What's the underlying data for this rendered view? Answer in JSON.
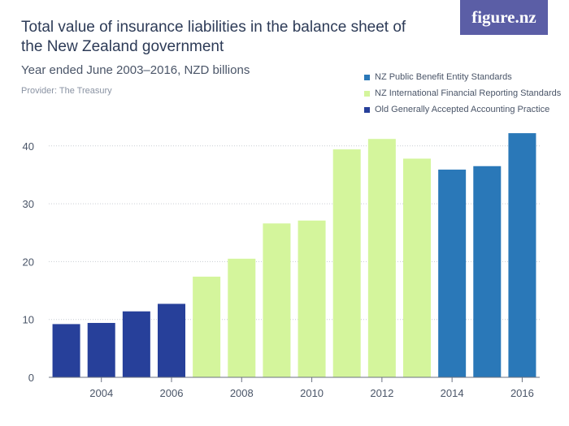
{
  "header": {
    "title": "Total value of insurance liabilities in the balance sheet of the New Zealand government",
    "subtitle": "Year ended June 2003–2016, NZD billions",
    "provider": "Provider: The Treasury",
    "logo_text": "figure.nz"
  },
  "colors": {
    "old_gaap": "#27409a",
    "nz_ifrs": "#d4f59c",
    "nz_pbe": "#2a78b8",
    "logo_bg": "#5b5ea6",
    "axis": "#6b7280",
    "grid": "#c9cdd3"
  },
  "chart_data": {
    "type": "bar",
    "title": "Total value of insurance liabilities in the balance sheet of the New Zealand government",
    "subtitle": "Year ended June 2003–2016, NZD billions",
    "categories": [
      "2003",
      "2004",
      "2005",
      "2006",
      "2007",
      "2008",
      "2009",
      "2010",
      "2011",
      "2012",
      "2013",
      "2014",
      "2015",
      "2016"
    ],
    "values": [
      9.2,
      9.4,
      11.4,
      12.7,
      17.4,
      20.5,
      26.6,
      27.1,
      39.4,
      41.2,
      37.8,
      35.9,
      36.5,
      42.2
    ],
    "bar_series": [
      "Old Generally Accepted Accounting Practice",
      "Old Generally Accepted Accounting Practice",
      "Old Generally Accepted Accounting Practice",
      "Old Generally Accepted Accounting Practice",
      "NZ International Financial Reporting Standards",
      "NZ International Financial Reporting Standards",
      "NZ International Financial Reporting Standards",
      "NZ International Financial Reporting Standards",
      "NZ International Financial Reporting Standards",
      "NZ International Financial Reporting Standards",
      "NZ International Financial Reporting Standards",
      "NZ Public Benefit Entity Standards",
      "NZ Public Benefit Entity Standards",
      "NZ Public Benefit Entity Standards"
    ],
    "series": [
      {
        "name": "NZ Public Benefit Entity Standards",
        "color": "#2a78b8"
      },
      {
        "name": "NZ International Financial Reporting Standards",
        "color": "#d4f59c"
      },
      {
        "name": "Old Generally Accepted Accounting Practice",
        "color": "#27409a"
      }
    ],
    "x_tick_labels": [
      "2004",
      "2006",
      "2008",
      "2010",
      "2012",
      "2014",
      "2016"
    ],
    "y_ticks": [
      "0",
      "10",
      "20",
      "30",
      "40"
    ],
    "ylim": [
      0,
      45
    ],
    "xlabel": "",
    "ylabel": "",
    "grid": true,
    "legend_position": "top-right"
  }
}
